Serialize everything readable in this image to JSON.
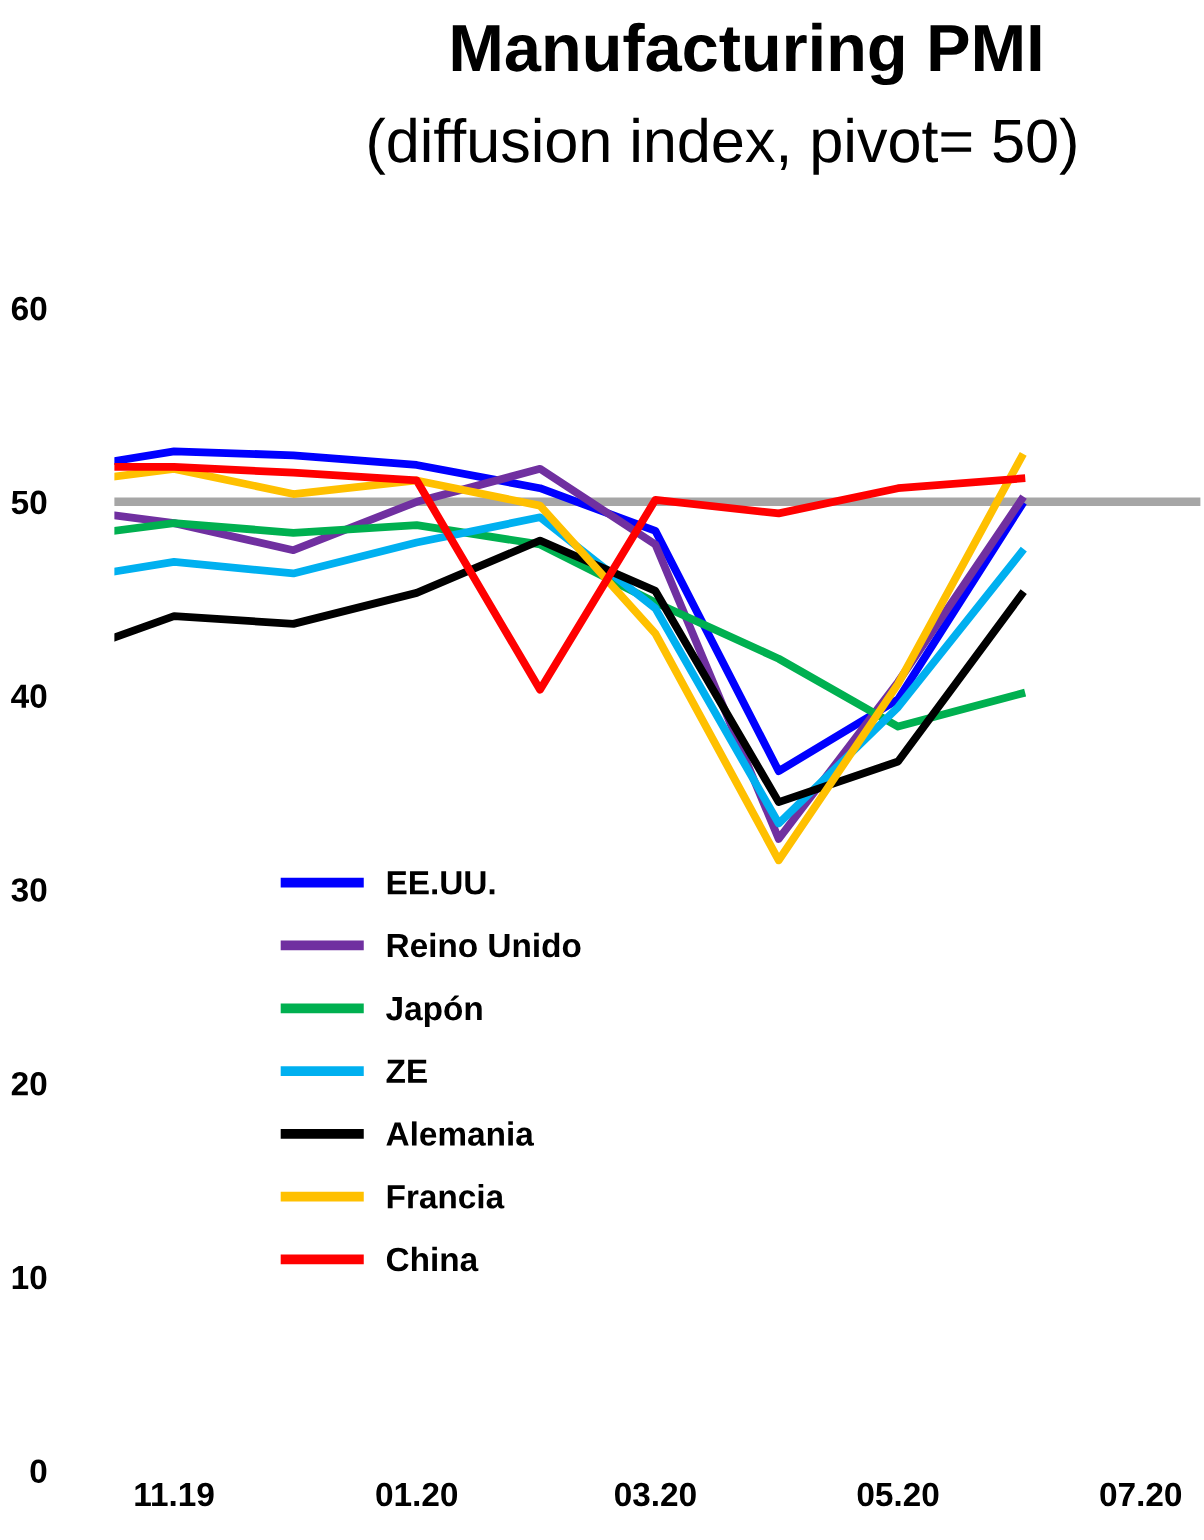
{
  "chart_data": {
    "type": "line",
    "title": "Manufacturing PMI",
    "subtitle": "(diffusion index, pivot= 50)",
    "x": [
      "2019-10-17",
      "2019-11-01",
      "2019-12-01",
      "2020-01-01",
      "2020-02-01",
      "2020-03-01",
      "2020-04-01",
      "2020-05-01",
      "2020-06-01"
    ],
    "series": [
      {
        "name": "EE.UU.",
        "color": "#0000ff",
        "values": [
          52.1,
          52.6,
          52.4,
          51.9,
          50.7,
          48.5,
          36.1,
          39.8,
          49.8
        ]
      },
      {
        "name": "Reino Unido",
        "color": "#7030a0",
        "values": [
          49.3,
          48.9,
          47.5,
          50.0,
          51.7,
          47.8,
          32.6,
          40.7,
          50.1
        ]
      },
      {
        "name": "Japón",
        "color": "#00b050",
        "values": [
          48.5,
          48.9,
          48.4,
          48.8,
          47.8,
          44.8,
          41.9,
          38.4,
          40.1
        ]
      },
      {
        "name": "ZE",
        "color": "#00b0f0",
        "values": [
          46.4,
          46.9,
          46.3,
          47.9,
          49.2,
          44.5,
          33.4,
          39.4,
          47.4
        ]
      },
      {
        "name": "Alemania",
        "color": "#000000",
        "values": [
          43.0,
          44.1,
          43.7,
          45.3,
          48.0,
          45.4,
          34.5,
          36.6,
          45.2
        ]
      },
      {
        "name": "Francia",
        "color": "#ffc000",
        "values": [
          51.3,
          51.7,
          50.4,
          51.1,
          49.8,
          43.2,
          31.5,
          40.6,
          52.3
        ]
      },
      {
        "name": "China",
        "color": "#ff0000",
        "values": [
          51.8,
          51.8,
          51.5,
          51.1,
          40.3,
          50.1,
          49.4,
          50.7,
          51.2
        ]
      }
    ],
    "xlim": [
      "2019-10-17",
      "2020-07-16"
    ],
    "xticks": [
      {
        "value": "2019-11-01",
        "label": "11.19"
      },
      {
        "value": "2020-01-01",
        "label": "01.20"
      },
      {
        "value": "2020-03-01",
        "label": "03.20"
      },
      {
        "value": "2020-05-01",
        "label": "05.20"
      },
      {
        "value": "2020-07-01",
        "label": "07.20"
      }
    ],
    "ylim": [
      0,
      60
    ],
    "yticks": [
      0,
      10,
      20,
      30,
      40,
      50,
      60
    ],
    "ref_lines": [
      {
        "axis": "y",
        "value": 50,
        "label": null,
        "color": "#a6a6a6"
      }
    ],
    "legend": "bottom left",
    "grid": false,
    "marker": "none",
    "line_style": "solid"
  }
}
